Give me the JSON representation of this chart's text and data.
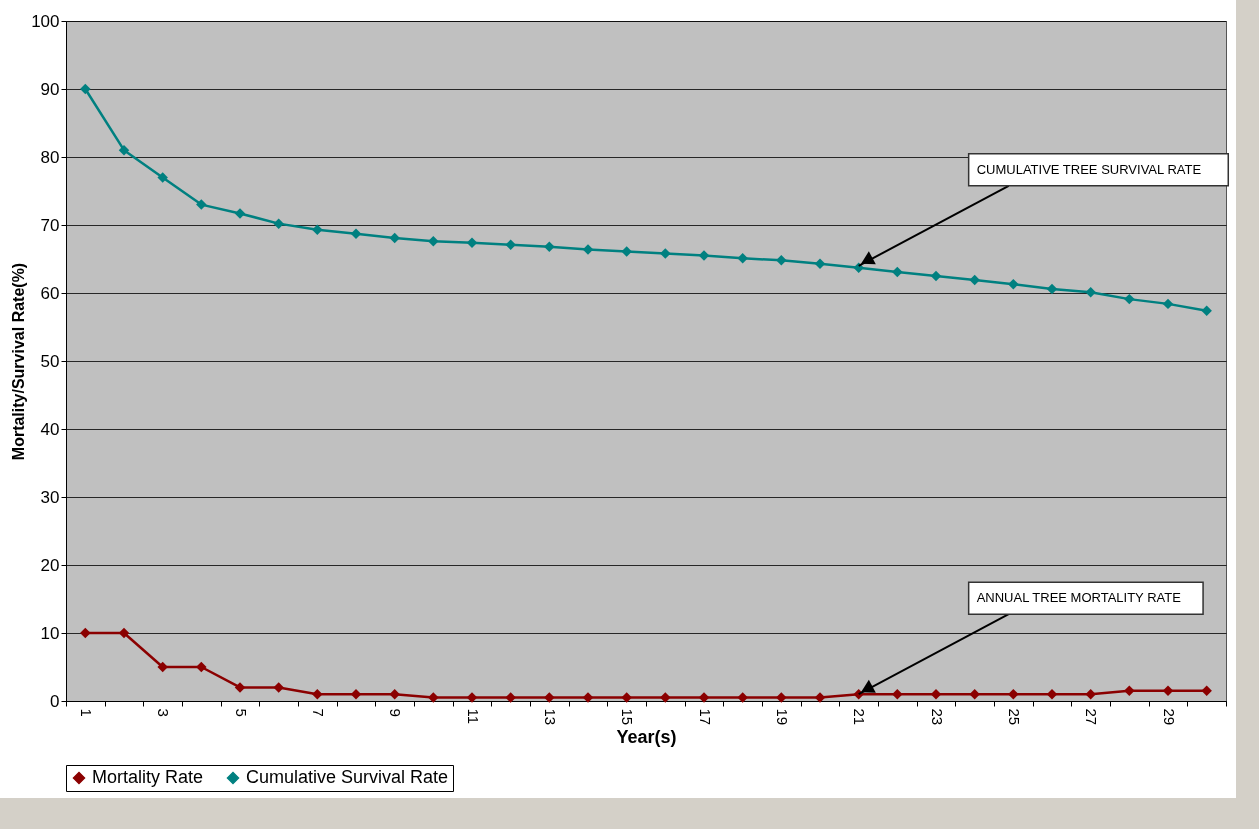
{
  "chart_data": {
    "type": "line",
    "xlabel": "Year(s)",
    "ylabel": "Mortality/Survival Rate(%)",
    "categories": [
      "1",
      null,
      "3",
      null,
      "5",
      null,
      "7",
      null,
      "9",
      null,
      "11",
      null,
      "13",
      null,
      "15",
      null,
      "17",
      null,
      "19",
      null,
      "21",
      null,
      "23",
      null,
      "25",
      null,
      "27",
      null,
      "29",
      null
    ],
    "series": [
      {
        "name": "Mortality Rate",
        "color": "#8b0000",
        "values": [
          10,
          10,
          5,
          5,
          2,
          2,
          1,
          1,
          1,
          0.5,
          0.5,
          0.5,
          0.5,
          0.5,
          0.5,
          0.5,
          0.5,
          0.5,
          0.5,
          0.5,
          1,
          1,
          1,
          1,
          1,
          1,
          1,
          1.5,
          1.5,
          1.5
        ]
      },
      {
        "name": "Cumulative Survival Rate",
        "color": "#008080",
        "values": [
          90,
          81,
          77,
          73,
          71.7,
          70.2,
          69.3,
          68.7,
          68.1,
          67.6,
          67.4,
          67.1,
          66.8,
          66.4,
          66.1,
          65.8,
          65.5,
          65.1,
          64.8,
          64.3,
          63.7,
          63.1,
          62.5,
          61.9,
          61.3,
          60.6,
          60.1,
          59.1,
          58.4,
          57.4
        ]
      }
    ],
    "ylim": [
      0,
      100
    ],
    "yticks": [
      0,
      10,
      20,
      30,
      40,
      50,
      60,
      70,
      80,
      90,
      100
    ],
    "grid": "y",
    "legend": "bottom",
    "marker": "diamond",
    "line_style": "solid",
    "annotations": [
      {
        "text": "CUMULATIVE TREE SURVIVAL RATE",
        "x": "21",
        "y": 64
      },
      {
        "text": "ANNUAL TREE MORTALITY RATE",
        "x": "21",
        "y": 1
      }
    ]
  }
}
